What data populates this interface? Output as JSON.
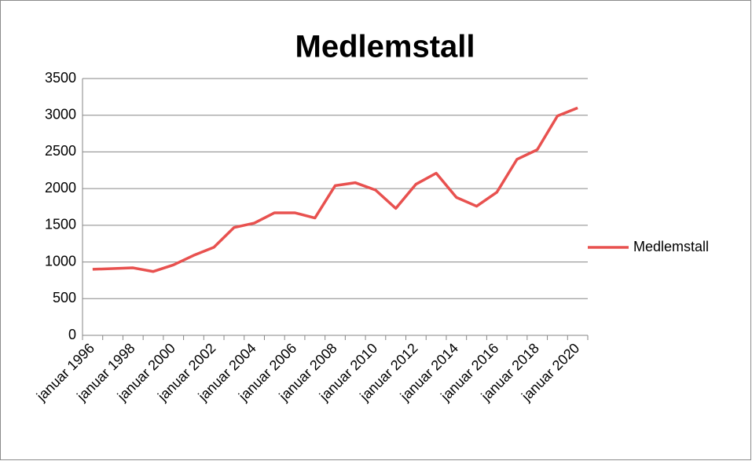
{
  "chart_data": {
    "type": "line",
    "title": "Medlemstall",
    "categories": [
      "januar 1996",
      null,
      "januar 1998",
      null,
      "januar 2000",
      null,
      "januar 2002",
      null,
      "januar 2004",
      null,
      "januar 2006",
      null,
      "januar 2008",
      null,
      "januar 2010",
      null,
      "januar 2012",
      null,
      "januar 2014",
      null,
      "januar 2016",
      null,
      "januar 2018",
      null,
      "januar 2020"
    ],
    "series": [
      {
        "name": "Medlemstall",
        "color": "#e8514f",
        "values": [
          900,
          910,
          920,
          870,
          960,
          1090,
          1200,
          1470,
          1530,
          1670,
          1670,
          1600,
          2040,
          2080,
          1980,
          1730,
          2060,
          2210,
          1880,
          1760,
          1950,
          2400,
          2530,
          2990,
          3100
        ]
      }
    ],
    "ylim": [
      0,
      3500
    ],
    "yticks": [
      0,
      500,
      1000,
      1500,
      2000,
      2500,
      3000,
      3500
    ],
    "grid": true,
    "legend": "right"
  }
}
